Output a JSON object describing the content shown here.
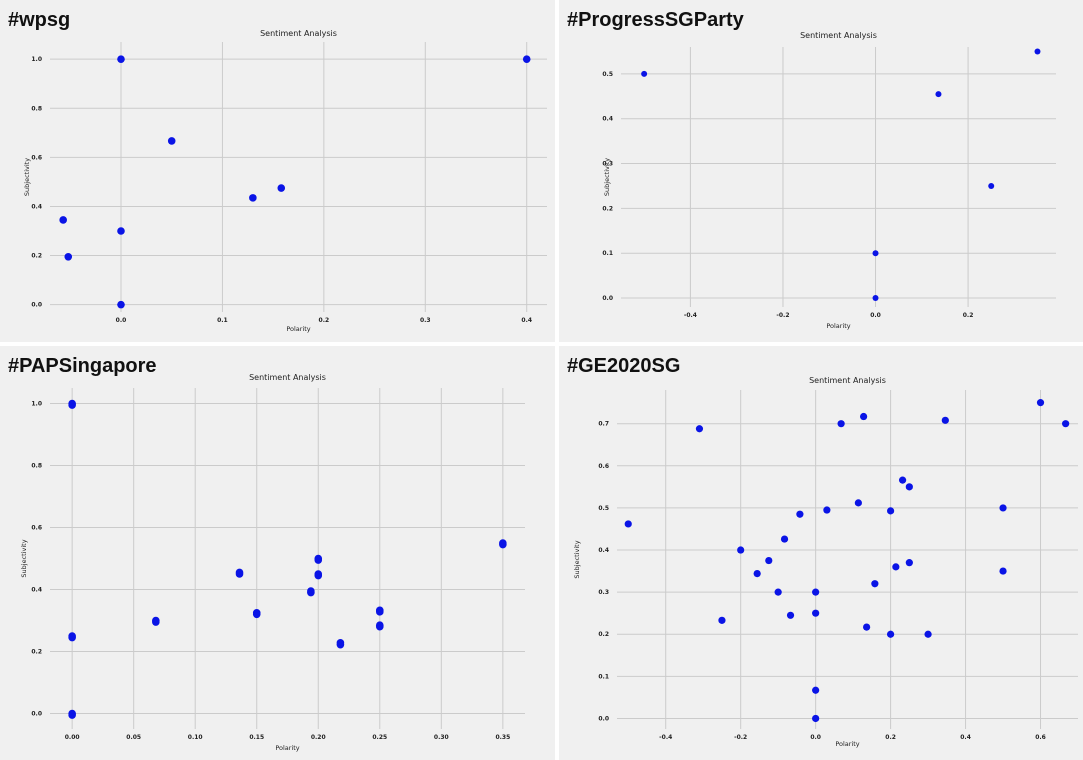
{
  "chart_data": [
    {
      "hashtag": "#wpsg",
      "type": "scatter",
      "title": "Sentiment Analysis",
      "xlabel": "Polarity",
      "ylabel": "Subjectivity",
      "xlim": [
        -0.07,
        0.42
      ],
      "ylim": [
        -0.03,
        1.07
      ],
      "xticks": [
        0.0,
        0.1,
        0.2,
        0.3,
        0.4
      ],
      "xtick_labels": [
        "0.0",
        "0.1",
        "0.2",
        "0.3",
        "0.4"
      ],
      "yticks": [
        0.0,
        0.2,
        0.4,
        0.6,
        0.8,
        1.0
      ],
      "ytick_labels": [
        "0.0",
        "0.2",
        "0.4",
        "0.6",
        "0.8",
        "1.0"
      ],
      "grid": true,
      "color": "#0a14e6",
      "points": [
        {
          "x": 0.0,
          "y": 1.0
        },
        {
          "x": 0.4,
          "y": 1.0
        },
        {
          "x": 0.05,
          "y": 0.667
        },
        {
          "x": 0.158,
          "y": 0.475
        },
        {
          "x": 0.13,
          "y": 0.435
        },
        {
          "x": -0.057,
          "y": 0.345
        },
        {
          "x": 0.0,
          "y": 0.3
        },
        {
          "x": -0.052,
          "y": 0.195
        },
        {
          "x": 0.0,
          "y": 0.0
        }
      ]
    },
    {
      "hashtag": "#ProgressSGParty",
      "type": "scatter",
      "title": "Sentiment Analysis",
      "xlabel": "Polarity",
      "ylabel": "Subjectivity",
      "xlim": [
        -0.55,
        0.39
      ],
      "ylim": [
        -0.02,
        0.56
      ],
      "xticks": [
        -0.4,
        -0.2,
        0.0,
        0.2
      ],
      "xtick_labels": [
        "-0.4",
        "-0.2",
        "0.0",
        "0.2"
      ],
      "yticks": [
        0.0,
        0.1,
        0.2,
        0.3,
        0.4,
        0.5
      ],
      "ytick_labels": [
        "0.0",
        "0.1",
        "0.2",
        "0.3",
        "0.4",
        "0.5"
      ],
      "grid": true,
      "color": "#0a14e6",
      "points": [
        {
          "x": -0.5,
          "y": 0.5
        },
        {
          "x": 0.35,
          "y": 0.55
        },
        {
          "x": 0.136,
          "y": 0.455
        },
        {
          "x": 0.25,
          "y": 0.25
        },
        {
          "x": 0.0,
          "y": 0.1
        },
        {
          "x": 0.0,
          "y": 0.0
        }
      ]
    },
    {
      "hashtag": "#PAPSingapore",
      "type": "scatter",
      "title": "Sentiment Analysis",
      "xlabel": "Polarity",
      "ylabel": "Subjectivity",
      "xlim": [
        -0.018,
        0.368
      ],
      "ylim": [
        -0.05,
        1.05
      ],
      "xticks": [
        0.0,
        0.05,
        0.1,
        0.15,
        0.2,
        0.25,
        0.3,
        0.35
      ],
      "xtick_labels": [
        "0.00",
        "0.05",
        "0.10",
        "0.15",
        "0.20",
        "0.25",
        "0.30",
        "0.35"
      ],
      "yticks": [
        0.0,
        0.2,
        0.4,
        0.6,
        0.8,
        1.0
      ],
      "ytick_labels": [
        "0.0",
        "0.2",
        "0.4",
        "0.6",
        "0.8",
        "1.0"
      ],
      "grid": true,
      "color": "#0a14e6",
      "points": [
        {
          "x": 0.0,
          "y": 1.0
        },
        {
          "x": 0.0,
          "y": 0.995
        },
        {
          "x": 0.0,
          "y": 0.25
        },
        {
          "x": 0.0,
          "y": 0.245
        },
        {
          "x": 0.0,
          "y": 0.0
        },
        {
          "x": 0.0,
          "y": -0.005
        },
        {
          "x": 0.068,
          "y": 0.3
        },
        {
          "x": 0.068,
          "y": 0.295
        },
        {
          "x": 0.136,
          "y": 0.455
        },
        {
          "x": 0.136,
          "y": 0.45
        },
        {
          "x": 0.15,
          "y": 0.325
        },
        {
          "x": 0.15,
          "y": 0.32
        },
        {
          "x": 0.194,
          "y": 0.395
        },
        {
          "x": 0.194,
          "y": 0.39
        },
        {
          "x": 0.2,
          "y": 0.5
        },
        {
          "x": 0.2,
          "y": 0.495
        },
        {
          "x": 0.2,
          "y": 0.45
        },
        {
          "x": 0.2,
          "y": 0.445
        },
        {
          "x": 0.218,
          "y": 0.228
        },
        {
          "x": 0.218,
          "y": 0.222
        },
        {
          "x": 0.25,
          "y": 0.333
        },
        {
          "x": 0.25,
          "y": 0.328
        },
        {
          "x": 0.25,
          "y": 0.285
        },
        {
          "x": 0.25,
          "y": 0.28
        },
        {
          "x": 0.35,
          "y": 0.55
        },
        {
          "x": 0.35,
          "y": 0.545
        }
      ]
    },
    {
      "hashtag": "#GE2020SG",
      "type": "scatter",
      "title": "Sentiment Analysis",
      "xlabel": "Polarity",
      "ylabel": "Subjectivity",
      "xlim": [
        -0.53,
        0.7
      ],
      "ylim": [
        -0.025,
        0.78
      ],
      "xticks": [
        -0.4,
        -0.2,
        0.0,
        0.2,
        0.4,
        0.6
      ],
      "xtick_labels": [
        "-0.4",
        "-0.2",
        "0.0",
        "0.2",
        "0.4",
        "0.6"
      ],
      "yticks": [
        0.0,
        0.1,
        0.2,
        0.3,
        0.4,
        0.5,
        0.6,
        0.7
      ],
      "ytick_labels": [
        "0.0",
        "0.1",
        "0.2",
        "0.3",
        "0.4",
        "0.5",
        "0.6",
        "0.7"
      ],
      "grid": true,
      "color": "#0a14e6",
      "points": [
        {
          "x": -0.5,
          "y": 0.462
        },
        {
          "x": -0.31,
          "y": 0.688
        },
        {
          "x": -0.25,
          "y": 0.233
        },
        {
          "x": -0.2,
          "y": 0.4
        },
        {
          "x": -0.156,
          "y": 0.344
        },
        {
          "x": -0.125,
          "y": 0.375
        },
        {
          "x": -0.1,
          "y": 0.3
        },
        {
          "x": -0.083,
          "y": 0.426
        },
        {
          "x": -0.067,
          "y": 0.245
        },
        {
          "x": -0.042,
          "y": 0.485
        },
        {
          "x": 0.0,
          "y": 0.3
        },
        {
          "x": 0.0,
          "y": 0.25
        },
        {
          "x": 0.0,
          "y": 0.067
        },
        {
          "x": 0.0,
          "y": 0.0
        },
        {
          "x": 0.03,
          "y": 0.495
        },
        {
          "x": 0.068,
          "y": 0.7
        },
        {
          "x": 0.114,
          "y": 0.512
        },
        {
          "x": 0.128,
          "y": 0.717
        },
        {
          "x": 0.136,
          "y": 0.217
        },
        {
          "x": 0.158,
          "y": 0.32
        },
        {
          "x": 0.2,
          "y": 0.493
        },
        {
          "x": 0.2,
          "y": 0.2
        },
        {
          "x": 0.214,
          "y": 0.36
        },
        {
          "x": 0.232,
          "y": 0.566
        },
        {
          "x": 0.25,
          "y": 0.37
        },
        {
          "x": 0.25,
          "y": 0.55
        },
        {
          "x": 0.3,
          "y": 0.2
        },
        {
          "x": 0.346,
          "y": 0.708
        },
        {
          "x": 0.5,
          "y": 0.5
        },
        {
          "x": 0.5,
          "y": 0.35
        },
        {
          "x": 0.6,
          "y": 0.75
        },
        {
          "x": 0.667,
          "y": 0.7
        }
      ]
    }
  ]
}
